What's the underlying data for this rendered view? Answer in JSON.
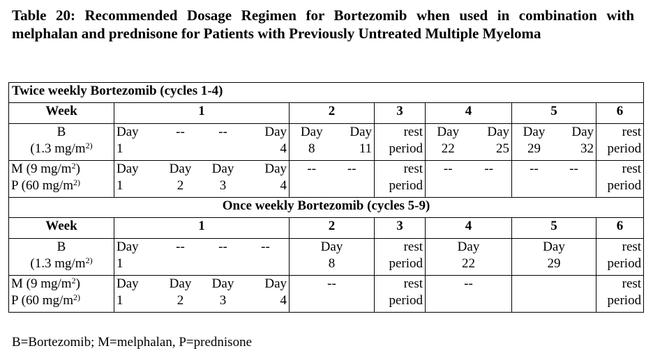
{
  "caption": "Table 20: Recommended Dosage Regimen for Bortezomib when used in combination with melphalan and prednisone for Patients with Previously Untreated Multiple Myeloma",
  "twice": {
    "heading": "Twice weekly Bortezomib (cycles 1-4)",
    "week_label": "Week",
    "weeks": [
      "1",
      "2",
      "3",
      "4",
      "5",
      "6"
    ],
    "b_label": [
      "B",
      "(1.3 mg/m",
      "2)"
    ],
    "b_week1": [
      [
        "Day",
        "1"
      ],
      [
        "--",
        ""
      ],
      [
        "--",
        ""
      ],
      [
        "Day",
        "4"
      ]
    ],
    "b_week2": [
      [
        "Day",
        "8"
      ],
      [
        "Day",
        "11"
      ]
    ],
    "b_week3": [
      "rest",
      "period"
    ],
    "b_week4": [
      [
        "Day",
        "22"
      ],
      [
        "Day",
        "25"
      ]
    ],
    "b_week5": [
      [
        "Day",
        "29"
      ],
      [
        "Day",
        "32"
      ]
    ],
    "b_week6": [
      "rest",
      "period"
    ],
    "mp_label": [
      "M (9 mg/m",
      "2",
      ")",
      "P (60 mg/m",
      "2)"
    ],
    "mp_week1": [
      [
        "Day",
        "1"
      ],
      [
        "Day",
        "2"
      ],
      [
        "Day",
        "3"
      ],
      [
        "Day",
        "4"
      ]
    ],
    "mp_week2": [
      "--",
      "--"
    ],
    "mp_week3": [
      "rest",
      "period"
    ],
    "mp_week4": [
      "--",
      "--"
    ],
    "mp_week5": [
      "--",
      "--"
    ],
    "mp_week6": [
      "rest",
      "period"
    ]
  },
  "once": {
    "heading": "Once weekly Bortezomib (cycles 5-9)",
    "week_label": "Week",
    "weeks": [
      "1",
      "2",
      "3",
      "4",
      "5",
      "6"
    ],
    "b_label": [
      "B",
      "(1.3 mg/m",
      "2)"
    ],
    "b_week1": [
      [
        "Day",
        "1"
      ],
      [
        "--",
        ""
      ],
      [
        "--",
        ""
      ],
      [
        "--",
        ""
      ]
    ],
    "b_week2": [
      "Day",
      "8"
    ],
    "b_week3": [
      "rest",
      "period"
    ],
    "b_week4": [
      "Day",
      "22"
    ],
    "b_week5": [
      "Day",
      "29"
    ],
    "b_week6": [
      "rest",
      "period"
    ],
    "mp_label": [
      "M (9 mg/m",
      "2",
      ")",
      "P (60 mg/m",
      "2)"
    ],
    "mp_week1": [
      [
        "Day",
        "1"
      ],
      [
        "Day",
        "2"
      ],
      [
        "Day",
        "3"
      ],
      [
        "Day",
        "4"
      ]
    ],
    "mp_week2": "--",
    "mp_week3": [
      "rest",
      "period"
    ],
    "mp_week4": "--",
    "mp_week5": "",
    "mp_week6": [
      "rest",
      "period"
    ]
  },
  "footnote": "B=Bortezomib; M=melphalan, P=prednisone"
}
